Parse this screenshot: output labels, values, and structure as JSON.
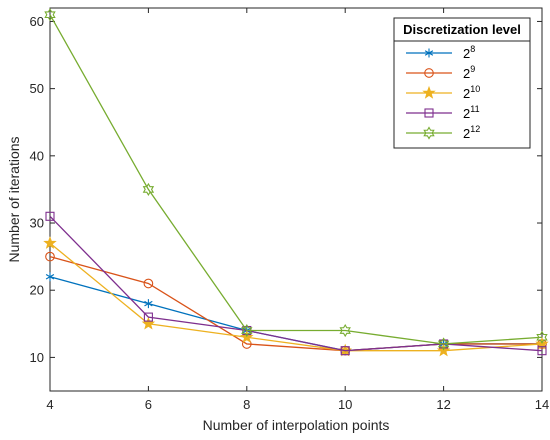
{
  "chart_data": {
    "type": "line",
    "xlabel": "Number of interpolation points",
    "ylabel": "Number of iterations",
    "xlim": [
      4,
      14
    ],
    "ylim": [
      5,
      62
    ],
    "x": [
      4,
      6,
      8,
      10,
      12,
      14
    ],
    "xticks": [
      4,
      6,
      8,
      10,
      12,
      14
    ],
    "yticks": [
      10,
      20,
      30,
      40,
      50,
      60
    ],
    "grid": false,
    "legend": {
      "title": "Discretization level",
      "position": "top-right"
    },
    "series": [
      {
        "base": "2",
        "exp": "8",
        "marker": "asterisk",
        "color": "#0072BD",
        "values": [
          22,
          18,
          14,
          11,
          12,
          12
        ]
      },
      {
        "base": "2",
        "exp": "9",
        "marker": "circle",
        "color": "#D95319",
        "values": [
          25,
          21,
          12,
          11,
          12,
          12
        ]
      },
      {
        "base": "2",
        "exp": "10",
        "marker": "star",
        "color": "#EDB120",
        "values": [
          27,
          15,
          13,
          11,
          11,
          12
        ]
      },
      {
        "base": "2",
        "exp": "11",
        "marker": "square",
        "color": "#7E2F8E",
        "values": [
          31,
          16,
          14,
          11,
          12,
          11
        ]
      },
      {
        "base": "2",
        "exp": "12",
        "marker": "hexagram",
        "color": "#77AC30",
        "values": [
          61,
          35,
          14,
          14,
          12,
          13
        ]
      }
    ]
  }
}
